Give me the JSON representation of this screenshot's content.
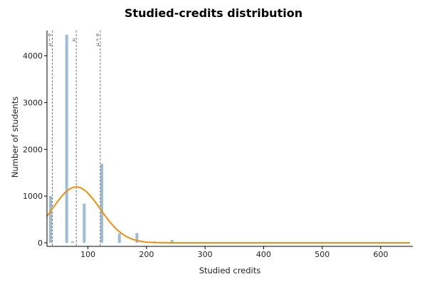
{
  "chart_data": {
    "type": "bar",
    "title": "Studied-credits distribution",
    "xlabel": "Studied credits",
    "ylabel": "Number of students",
    "xlim": [
      30,
      655
    ],
    "ylim": [
      0,
      4500
    ],
    "xticks": [
      100,
      200,
      300,
      400,
      500,
      600
    ],
    "yticks": [
      0,
      1000,
      2000,
      3000,
      4000
    ],
    "grid": false,
    "bars": [
      {
        "x": 30,
        "y": 1000
      },
      {
        "x": 60,
        "y": 4450
      },
      {
        "x": 70,
        "y": 30
      },
      {
        "x": 90,
        "y": 840
      },
      {
        "x": 120,
        "y": 1690
      },
      {
        "x": 150,
        "y": 200
      },
      {
        "x": 180,
        "y": 210
      },
      {
        "x": 210,
        "y": 30
      },
      {
        "x": 240,
        "y": 60
      }
    ],
    "curve": {
      "type": "normal-pdf",
      "mean": 80,
      "sd": 41,
      "peak": 1195,
      "color": "#f28e0b"
    },
    "reference_lines": [
      {
        "x": 39,
        "label": "μ − σ"
      },
      {
        "x": 80,
        "label": "μ"
      },
      {
        "x": 121,
        "label": "μ + σ"
      }
    ],
    "colors": {
      "bar": "#9dbcd7",
      "curve": "#f28e0b",
      "reference_line": "#555555"
    }
  }
}
